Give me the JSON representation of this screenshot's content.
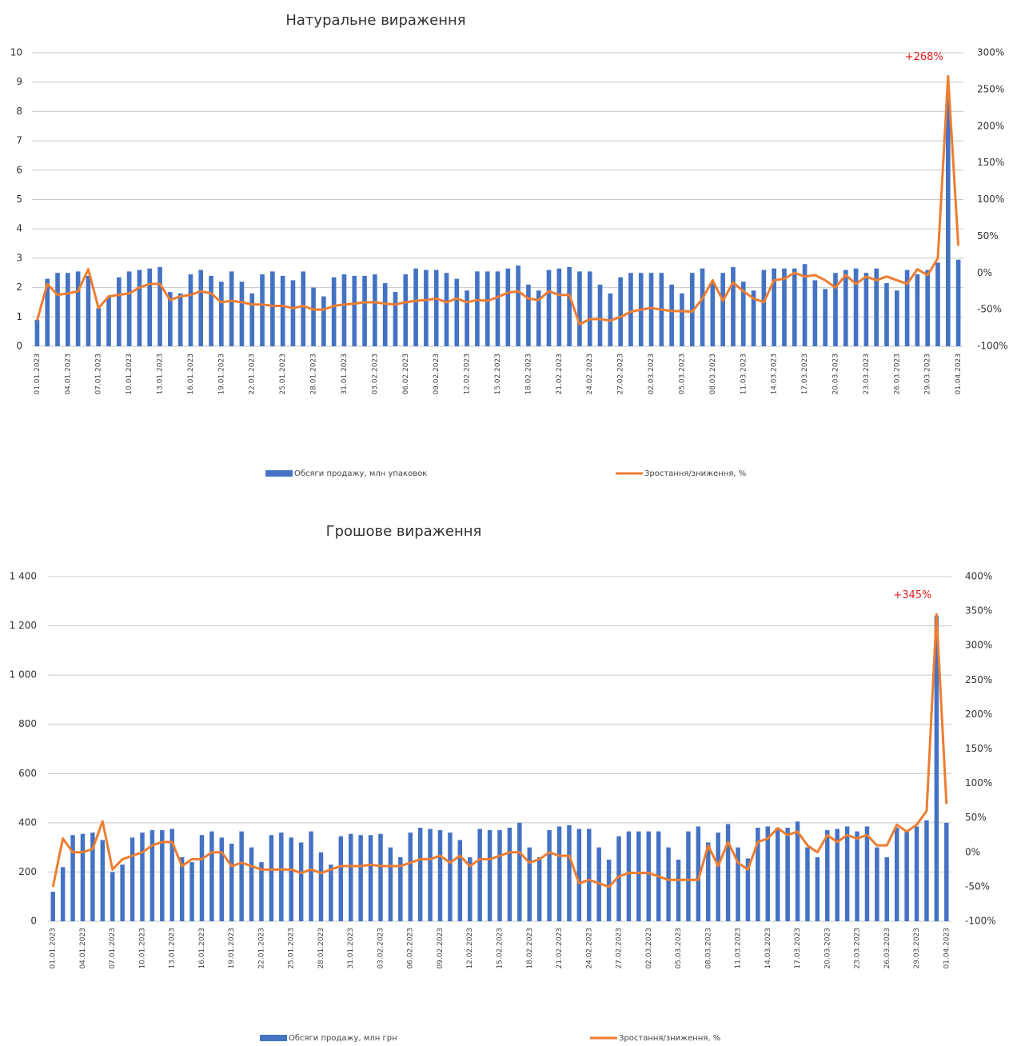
{
  "chart_data": [
    {
      "type": "combo",
      "title": "Натуральне вираження",
      "annotation": "+268%",
      "categories": [
        "01.01.2023",
        null,
        null,
        "04.01.2023",
        null,
        null,
        "07.01.2023",
        null,
        null,
        "10.01.2023",
        null,
        null,
        "13.01.2023",
        null,
        null,
        "16.01.2023",
        null,
        null,
        "19.01.2023",
        null,
        null,
        "22.01.2023",
        null,
        null,
        "25.01.2023",
        null,
        null,
        "28.01.2023",
        null,
        null,
        "31.01.2023",
        null,
        null,
        "03.02.2023",
        null,
        null,
        "06.02.2023",
        null,
        null,
        "09.02.2023",
        null,
        null,
        "12.02.2023",
        null,
        null,
        "15.02.2023",
        null,
        null,
        "18.02.2023",
        null,
        null,
        "21.02.2023",
        null,
        null,
        "24.02.2023",
        null,
        null,
        "27.02.2023",
        null,
        null,
        "02.03.2023",
        null,
        null,
        "05.03.2023",
        null,
        null,
        "08.03.2023",
        null,
        null,
        "11.03.2023",
        null,
        null,
        "14.03.2023",
        null,
        null,
        "17.03.2023",
        null,
        null,
        "20.03.2023",
        null,
        null,
        "23.03.2023",
        null,
        null,
        "26.03.2023",
        null,
        null,
        "29.03.2023",
        null,
        null,
        "01.04.2023"
      ],
      "series": [
        {
          "name": "Обсяги продажу, млн упаковок",
          "type": "bar",
          "color": "#4472c4",
          "values": [
            0.9,
            2.3,
            2.5,
            2.5,
            2.55,
            2.4,
            1.3,
            1.7,
            2.35,
            2.55,
            2.6,
            2.65,
            2.7,
            1.85,
            1.8,
            2.45,
            2.6,
            2.4,
            2.2,
            2.55,
            2.2,
            1.8,
            2.45,
            2.55,
            2.4,
            2.25,
            2.55,
            2.0,
            1.7,
            2.35,
            2.45,
            2.4,
            2.4,
            2.45,
            2.15,
            1.85,
            2.45,
            2.65,
            2.6,
            2.6,
            2.5,
            2.3,
            1.9,
            2.55,
            2.55,
            2.55,
            2.65,
            2.75,
            2.1,
            1.9,
            2.6,
            2.65,
            2.7,
            2.55,
            2.55,
            2.1,
            1.8,
            2.35,
            2.5,
            2.5,
            2.5,
            2.5,
            2.1,
            1.8,
            2.5,
            2.65,
            2.2,
            2.5,
            2.7,
            2.2,
            1.9,
            2.6,
            2.65,
            2.65,
            2.65,
            2.8,
            2.25,
            1.95,
            2.5,
            2.6,
            2.65,
            2.5,
            2.65,
            2.15,
            1.9,
            2.6,
            2.45,
            2.6,
            2.85,
            8.6,
            2.95
          ]
        },
        {
          "name": "Зростання/зниження, %",
          "type": "line",
          "axis": "y2",
          "color": "#ed7d31",
          "values": [
            -65,
            -15,
            -30,
            -28,
            -25,
            5,
            -48,
            -32,
            -30,
            -28,
            -20,
            -15,
            -15,
            -37,
            -32,
            -30,
            -25,
            -28,
            -40,
            -38,
            -40,
            -43,
            -43,
            -45,
            -45,
            -48,
            -45,
            -50,
            -50,
            -45,
            -43,
            -42,
            -40,
            -40,
            -42,
            -43,
            -40,
            -38,
            -37,
            -35,
            -40,
            -35,
            -40,
            -37,
            -38,
            -33,
            -27,
            -25,
            -35,
            -37,
            -25,
            -30,
            -30,
            -70,
            -63,
            -63,
            -65,
            -60,
            -53,
            -50,
            -48,
            -50,
            -52,
            -52,
            -53,
            -35,
            -10,
            -38,
            -13,
            -25,
            -35,
            -40,
            -10,
            -8,
            0,
            -5,
            -3,
            -10,
            -20,
            -3,
            -15,
            -5,
            -10,
            -5,
            -10,
            -15,
            5,
            -3,
            20,
            268,
            37
          ]
        }
      ],
      "ylim": [
        0,
        10
      ],
      "yticks": [
        0,
        1,
        2,
        3,
        4,
        5,
        6,
        7,
        8,
        9,
        10
      ],
      "y2lim": [
        -100,
        300
      ],
      "y2ticks": [
        {
          "value": -100,
          "label": "-100%"
        },
        {
          "value": -50,
          "label": "-50%"
        },
        {
          "value": 0,
          "label": "0%"
        },
        {
          "value": 50,
          "label": "50%"
        },
        {
          "value": 100,
          "label": "100%"
        },
        {
          "value": 150,
          "label": "150%"
        },
        {
          "value": 200,
          "label": "200%"
        },
        {
          "value": 250,
          "label": "250%"
        },
        {
          "value": 300,
          "label": "300%"
        }
      ],
      "grid": true
    },
    {
      "type": "combo",
      "title": "Грошове вираження",
      "annotation": "+345%",
      "categories": [
        "01.01.2023",
        null,
        null,
        "04.01.2023",
        null,
        null,
        "07.01.2023",
        null,
        null,
        "10.01.2023",
        null,
        null,
        "13.01.2023",
        null,
        null,
        "16.01.2023",
        null,
        null,
        "19.01.2023",
        null,
        null,
        "22.01.2023",
        null,
        null,
        "25.01.2023",
        null,
        null,
        "28.01.2023",
        null,
        null,
        "31.01.2023",
        null,
        null,
        "03.02.2023",
        null,
        null,
        "06.02.2023",
        null,
        null,
        "09.02.2023",
        null,
        null,
        "12.02.2023",
        null,
        null,
        "15.02.2023",
        null,
        null,
        "18.02.2023",
        null,
        null,
        "21.02.2023",
        null,
        null,
        "24.02.2023",
        null,
        null,
        "27.02.2023",
        null,
        null,
        "02.03.2023",
        null,
        null,
        "05.03.2023",
        null,
        null,
        "08.03.2023",
        null,
        null,
        "11.03.2023",
        null,
        null,
        "14.03.2023",
        null,
        null,
        "17.03.2023",
        null,
        null,
        "20.03.2023",
        null,
        null,
        "23.03.2023",
        null,
        null,
        "26.03.2023",
        null,
        null,
        "29.03.2023",
        null,
        null,
        "01.04.2023"
      ],
      "series": [
        {
          "name": "Обсяги продажу, млн грн",
          "type": "bar",
          "color": "#4472c4",
          "values": [
            120,
            220,
            350,
            355,
            360,
            330,
            200,
            230,
            340,
            360,
            370,
            370,
            375,
            260,
            240,
            350,
            365,
            340,
            315,
            365,
            300,
            240,
            350,
            360,
            340,
            320,
            365,
            280,
            230,
            345,
            355,
            350,
            350,
            355,
            300,
            260,
            360,
            380,
            375,
            370,
            360,
            330,
            260,
            375,
            370,
            370,
            380,
            400,
            300,
            260,
            370,
            385,
            390,
            375,
            375,
            300,
            250,
            345,
            365,
            365,
            365,
            365,
            300,
            250,
            365,
            385,
            320,
            360,
            395,
            300,
            255,
            380,
            385,
            380,
            380,
            405,
            300,
            260,
            370,
            375,
            385,
            365,
            385,
            300,
            260,
            380,
            370,
            385,
            410,
            1240,
            400
          ]
        },
        {
          "name": "Зростання/зниження, %",
          "type": "line",
          "axis": "y2",
          "color": "#ed7d31",
          "values": [
            -50,
            20,
            0,
            0,
            5,
            45,
            -25,
            -10,
            -5,
            0,
            10,
            15,
            15,
            -20,
            -10,
            -10,
            0,
            0,
            -20,
            -15,
            -20,
            -25,
            -25,
            -25,
            -25,
            -30,
            -25,
            -30,
            -25,
            -20,
            -20,
            -20,
            -18,
            -20,
            -20,
            -20,
            -15,
            -10,
            -10,
            -5,
            -15,
            -5,
            -20,
            -10,
            -10,
            -5,
            0,
            0,
            -15,
            -10,
            0,
            -5,
            -5,
            -45,
            -40,
            -45,
            -50,
            -35,
            -30,
            -30,
            -30,
            -35,
            -40,
            -40,
            -40,
            -40,
            10,
            -20,
            15,
            -15,
            -25,
            15,
            20,
            35,
            25,
            30,
            10,
            0,
            25,
            15,
            25,
            20,
            25,
            10,
            10,
            40,
            30,
            40,
            60,
            345,
            70
          ]
        }
      ],
      "ylim": [
        0,
        1400
      ],
      "yticks": [
        0,
        200,
        400,
        600,
        800,
        {
          "value": 1000,
          "label": "1 000"
        },
        {
          "value": 1200,
          "label": "1 200"
        },
        {
          "value": 1400,
          "label": "1 400"
        }
      ],
      "y2lim": [
        -100,
        400
      ],
      "y2ticks": [
        {
          "value": -100,
          "label": "-100%"
        },
        {
          "value": -50,
          "label": "-50%"
        },
        {
          "value": 0,
          "label": "0%"
        },
        {
          "value": 50,
          "label": "50%"
        },
        {
          "value": 100,
          "label": "100%"
        },
        {
          "value": 150,
          "label": "150%"
        },
        {
          "value": 200,
          "label": "200%"
        },
        {
          "value": 250,
          "label": "250%"
        },
        {
          "value": 300,
          "label": "300%"
        },
        {
          "value": 350,
          "label": "350%"
        },
        {
          "value": 400,
          "label": "400%"
        }
      ],
      "grid": true
    }
  ]
}
